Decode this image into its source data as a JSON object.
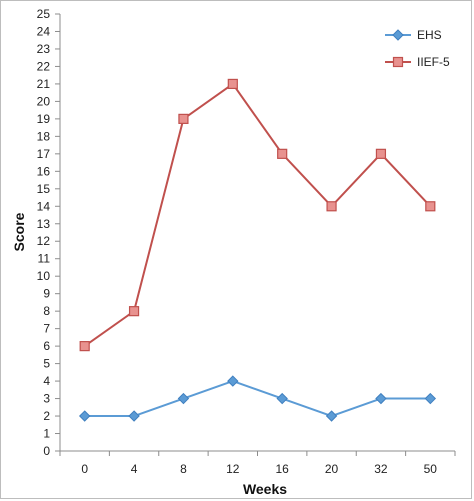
{
  "chart_data": {
    "type": "line",
    "categories": [
      "0",
      "4",
      "8",
      "12",
      "16",
      "20",
      "32",
      "50"
    ],
    "series": [
      {
        "name": "EHS",
        "values": [
          2,
          2,
          3,
          4,
          3,
          2,
          3,
          3
        ],
        "color": "#5b9bd5",
        "marker": "diamond"
      },
      {
        "name": "IIEF-5",
        "values": [
          6,
          8,
          19,
          21,
          17,
          14,
          17,
          14
        ],
        "color": "#c0504d",
        "marker": "square"
      }
    ],
    "xlabel": "Weeks",
    "ylabel": "Score",
    "ylim": [
      0,
      25
    ],
    "yticks": [
      "0",
      "1",
      "2",
      "3",
      "4",
      "5",
      "6",
      "7",
      "8",
      "9",
      "10",
      "11",
      "12",
      "13",
      "14",
      "15",
      "16",
      "17",
      "18",
      "19",
      "20",
      "21",
      "22",
      "23",
      "24",
      "25"
    ],
    "grid": false,
    "legend_position": "top-right"
  }
}
